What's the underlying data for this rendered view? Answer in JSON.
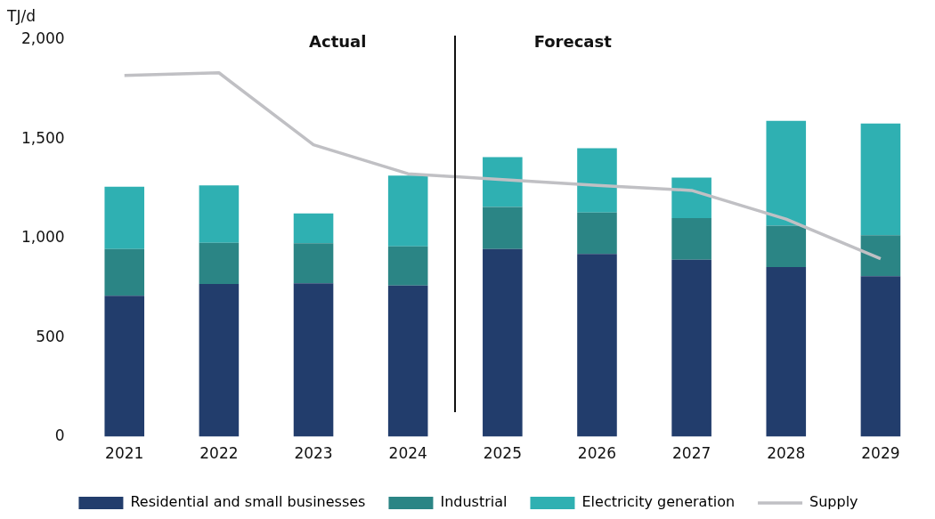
{
  "chart_data": {
    "type": "bar",
    "stacked": true,
    "ylabel": "TJ/d",
    "categories": [
      "2021",
      "2022",
      "2023",
      "2024",
      "2025",
      "2026",
      "2027",
      "2028",
      "2029"
    ],
    "series": [
      {
        "name": "Residential and small businesses",
        "color": "#223d6c",
        "values": [
          711,
          770,
          774,
          762,
          946,
          922,
          892,
          855,
          809
        ]
      },
      {
        "name": "Industrial",
        "color": "#2b8585",
        "values": [
          235,
          208,
          202,
          198,
          212,
          208,
          210,
          209,
          207
        ]
      },
      {
        "name": "Electricity generation",
        "color": "#2fb0b2",
        "values": [
          315,
          289,
          150,
          357,
          252,
          325,
          205,
          529,
          563
        ]
      },
      {
        "name": "Supply",
        "type": "line",
        "color": "#c0c0c4",
        "marker": "none",
        "values": [
          1822,
          1835,
          1472,
          1326,
          1296,
          1267,
          1242,
          1097,
          898
        ]
      }
    ],
    "ylim": [
      0,
      2000
    ],
    "yticks": [
      0,
      500,
      {
        "value": 1000,
        "label": "1,000"
      },
      {
        "value": 1500,
        "label": "1,500"
      },
      {
        "value": 2000,
        "label": "2,000"
      }
    ],
    "annotations": [
      "Actual",
      "Forecast"
    ],
    "grid": false,
    "legend": "bottom"
  }
}
